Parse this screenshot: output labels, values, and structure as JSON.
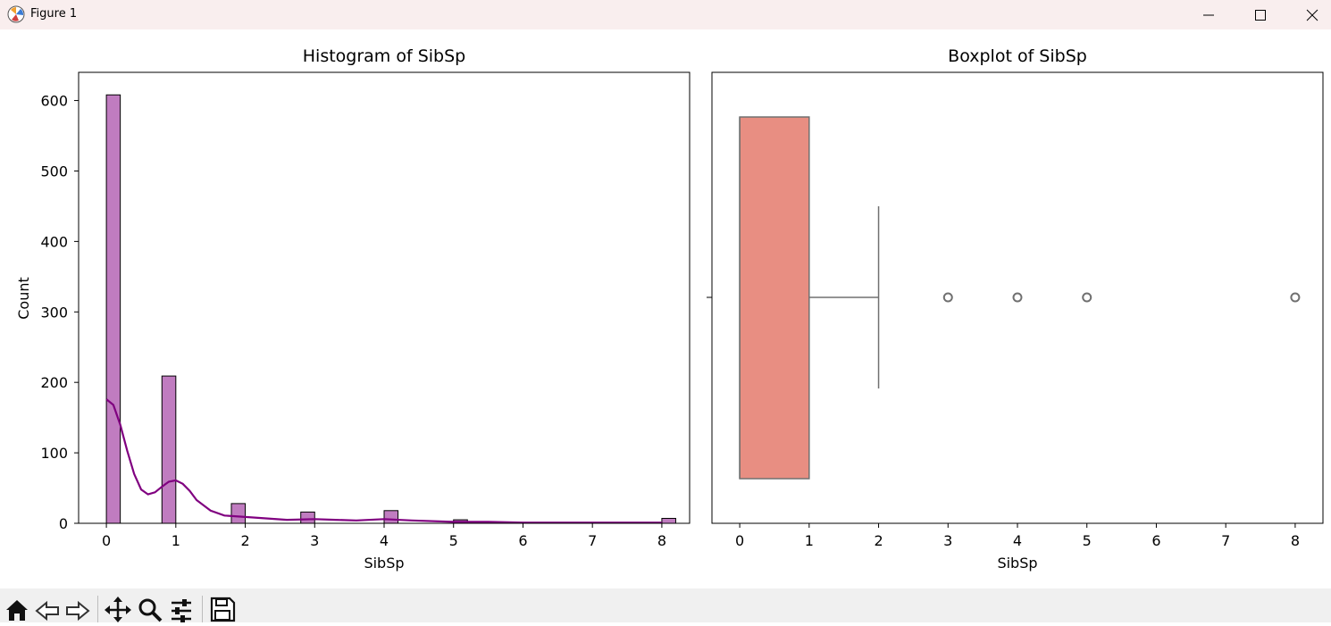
{
  "window": {
    "title": "Figure 1"
  },
  "toolbar": {
    "icons": [
      "home-icon",
      "back-arrow-icon",
      "forward-arrow-icon",
      "pan-icon",
      "zoom-icon",
      "configure-subplots-icon",
      "save-icon"
    ]
  },
  "colors": {
    "hist_bar": "#c07cc0",
    "kde_line": "#800080",
    "box_fill": "#e88e82",
    "box_line": "#707070"
  },
  "chart_data": [
    {
      "type": "bar",
      "title": "Histogram of SibSp",
      "xlabel": "SibSp",
      "ylabel": "Count",
      "xlim": [
        -0.4,
        8.4
      ],
      "ylim": [
        0,
        640
      ],
      "xticks": [
        "0",
        "1",
        "2",
        "3",
        "4",
        "5",
        "6",
        "7",
        "8"
      ],
      "yticks": [
        "0",
        "100",
        "200",
        "300",
        "400",
        "500",
        "600"
      ],
      "bin_width": 0.2,
      "bins": [
        {
          "x": 0,
          "count": 608
        },
        {
          "x": 0.8,
          "count": 209
        },
        {
          "x": 1.8,
          "count": 28
        },
        {
          "x": 2.8,
          "count": 16
        },
        {
          "x": 4,
          "count": 18
        },
        {
          "x": 5,
          "count": 5
        },
        {
          "x": 8,
          "count": 7
        }
      ],
      "kde": {
        "x": [
          0,
          0.1,
          0.2,
          0.3,
          0.4,
          0.5,
          0.6,
          0.7,
          0.8,
          0.9,
          1.0,
          1.1,
          1.2,
          1.3,
          1.5,
          1.7,
          2.0,
          2.3,
          2.6,
          3.0,
          3.3,
          3.6,
          4.0,
          4.4,
          5.0,
          5.5,
          6.0,
          7.0,
          8.0
        ],
        "y": [
          176,
          168,
          140,
          103,
          70,
          48,
          41,
          44,
          52,
          59,
          61,
          56,
          46,
          33,
          18,
          11,
          9,
          7,
          5,
          6,
          5,
          4,
          6,
          4,
          2,
          2,
          1,
          1,
          1
        ]
      }
    },
    {
      "type": "box",
      "title": "Boxplot of SibSp",
      "xlabel": "SibSp",
      "xlim": [
        -0.4,
        8.4
      ],
      "xticks": [
        "0",
        "1",
        "2",
        "3",
        "4",
        "5",
        "6",
        "7",
        "8"
      ],
      "q1": 0,
      "median": 0,
      "q3": 1,
      "whisker_low": 0,
      "whisker_high": 2,
      "outliers": [
        3,
        4,
        5,
        8
      ]
    }
  ]
}
